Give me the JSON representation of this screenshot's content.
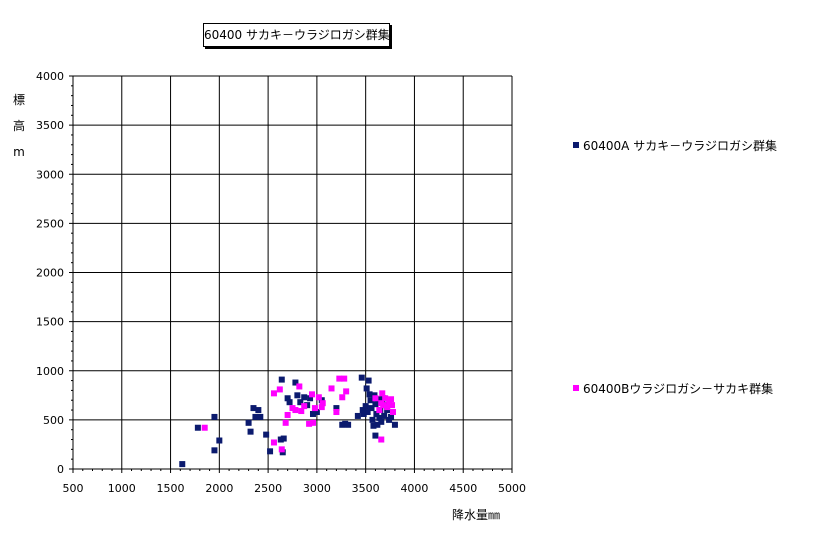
{
  "chart_data": {
    "type": "scatter",
    "title": "60400 サカキ－ウラジロガシ群集",
    "xlabel": "降水量㎜",
    "ylabel_chars": [
      "標",
      "高",
      "m"
    ],
    "xlim": [
      500,
      5000
    ],
    "ylim": [
      0,
      4000
    ],
    "x_ticks": [
      500,
      1000,
      1500,
      2000,
      2500,
      3000,
      3500,
      4000,
      4500,
      5000
    ],
    "y_ticks": [
      0,
      500,
      1000,
      1500,
      2000,
      2500,
      3000,
      3500,
      4000
    ],
    "grid": true,
    "legend_placement": "right",
    "series": [
      {
        "name": "60400A サカキ－ウラジロガシ群集",
        "color": "#0b1a6e",
        "points": [
          [
            1620,
            50
          ],
          [
            1780,
            420
          ],
          [
            1950,
            530
          ],
          [
            1950,
            190
          ],
          [
            2000,
            290
          ],
          [
            2300,
            470
          ],
          [
            2320,
            380
          ],
          [
            2350,
            620
          ],
          [
            2370,
            530
          ],
          [
            2400,
            600
          ],
          [
            2420,
            530
          ],
          [
            2480,
            350
          ],
          [
            2520,
            180
          ],
          [
            2630,
            300
          ],
          [
            2640,
            910
          ],
          [
            2650,
            170
          ],
          [
            2660,
            310
          ],
          [
            2700,
            720
          ],
          [
            2720,
            680
          ],
          [
            2780,
            880
          ],
          [
            2800,
            750
          ],
          [
            2830,
            680
          ],
          [
            2870,
            730
          ],
          [
            2900,
            650
          ],
          [
            2930,
            720
          ],
          [
            2960,
            560
          ],
          [
            3000,
            580
          ],
          [
            3050,
            700
          ],
          [
            3200,
            620
          ],
          [
            3260,
            450
          ],
          [
            3290,
            460
          ],
          [
            3320,
            450
          ],
          [
            3420,
            540
          ],
          [
            3460,
            930
          ],
          [
            3470,
            600
          ],
          [
            3480,
            560
          ],
          [
            3500,
            640
          ],
          [
            3510,
            820
          ],
          [
            3520,
            580
          ],
          [
            3530,
            900
          ],
          [
            3540,
            760
          ],
          [
            3550,
            700
          ],
          [
            3560,
            620
          ],
          [
            3570,
            500
          ],
          [
            3580,
            440
          ],
          [
            3590,
            750
          ],
          [
            3600,
            660
          ],
          [
            3600,
            340
          ],
          [
            3610,
            560
          ],
          [
            3620,
            450
          ],
          [
            3630,
            710
          ],
          [
            3640,
            520
          ],
          [
            3650,
            600
          ],
          [
            3660,
            480
          ],
          [
            3670,
            680
          ],
          [
            3680,
            720
          ],
          [
            3690,
            540
          ],
          [
            3700,
            650
          ],
          [
            3720,
            600
          ],
          [
            3740,
            500
          ],
          [
            3760,
            530
          ],
          [
            3800,
            450
          ]
        ]
      },
      {
        "name": "60400Bウラジロガシ－サカキ群集",
        "color": "#ff00ff",
        "points": [
          [
            1850,
            420
          ],
          [
            2560,
            270
          ],
          [
            2560,
            770
          ],
          [
            2620,
            810
          ],
          [
            2640,
            200
          ],
          [
            2680,
            470
          ],
          [
            2700,
            550
          ],
          [
            2750,
            620
          ],
          [
            2780,
            600
          ],
          [
            2820,
            840
          ],
          [
            2840,
            590
          ],
          [
            2870,
            640
          ],
          [
            2920,
            460
          ],
          [
            2950,
            760
          ],
          [
            2960,
            470
          ],
          [
            2980,
            620
          ],
          [
            3020,
            730
          ],
          [
            3050,
            630
          ],
          [
            3060,
            670
          ],
          [
            3150,
            820
          ],
          [
            3200,
            580
          ],
          [
            3230,
            920
          ],
          [
            3260,
            730
          ],
          [
            3280,
            920
          ],
          [
            3300,
            790
          ],
          [
            3600,
            720
          ],
          [
            3640,
            600
          ],
          [
            3660,
            670
          ],
          [
            3670,
            770
          ],
          [
            3680,
            650
          ],
          [
            3700,
            720
          ],
          [
            3720,
            630
          ],
          [
            3740,
            680
          ],
          [
            3760,
            710
          ],
          [
            3770,
            650
          ],
          [
            3780,
            580
          ],
          [
            3660,
            300
          ]
        ]
      }
    ]
  }
}
